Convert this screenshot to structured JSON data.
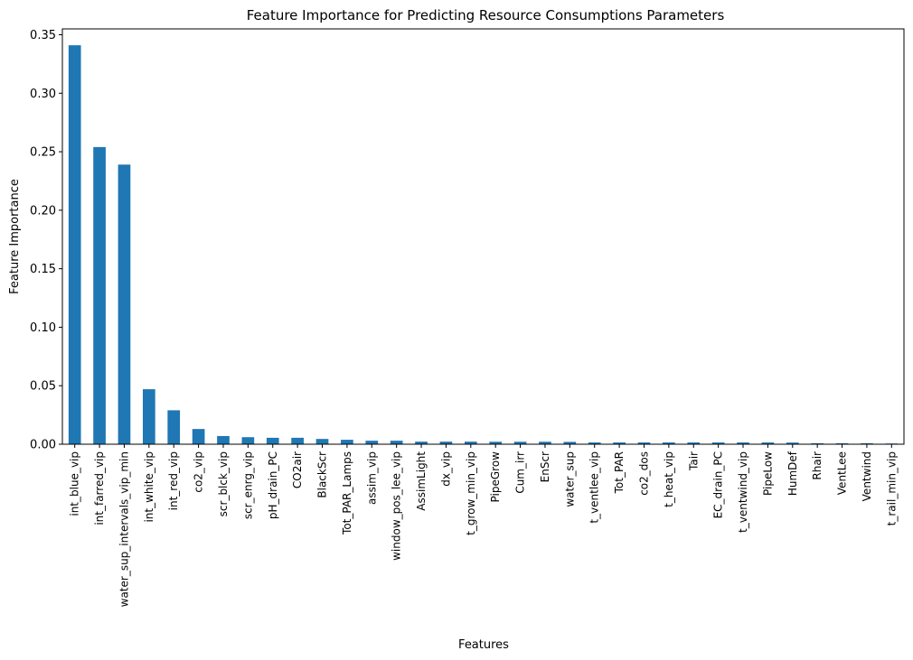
{
  "chart_data": {
    "type": "bar",
    "title": "Feature Importance for Predicting Resource Consumptions Parameters",
    "xlabel": "Features",
    "ylabel": "Feature Importance",
    "ylim": [
      0,
      0.355
    ],
    "yticks": [
      "0.00",
      "0.05",
      "0.10",
      "0.15",
      "0.20",
      "0.25",
      "0.30",
      "0.35"
    ],
    "bar_color": "#1f77b4",
    "grid": false,
    "legend": "none",
    "categories": [
      "int_blue_vip",
      "int_farred_vip",
      "water_sup_intervals_vip_min",
      "int_white_vip",
      "int_red_vip",
      "co2_vip",
      "scr_blck_vip",
      "scr_enrg_vip",
      "pH_drain_PC",
      "CO2air",
      "BlackScr",
      "Tot_PAR_Lamps",
      "assim_vip",
      "window_pos_lee_vip",
      "AssimLight",
      "dx_vip",
      "t_grow_min_vip",
      "PipeGrow",
      "Cum_irr",
      "EnScr",
      "water_sup",
      "t_ventlee_vip",
      "Tot_PAR",
      "co2_dos",
      "t_heat_vip",
      "Tair",
      "EC_drain_PC",
      "t_ventwind_vip",
      "PipeLow",
      "HumDef",
      "Rhair",
      "VentLee",
      "Ventwind",
      "t_rail_min_vip"
    ],
    "values": [
      0.341,
      0.254,
      0.239,
      0.047,
      0.029,
      0.013,
      0.007,
      0.006,
      0.0055,
      0.0055,
      0.0045,
      0.0038,
      0.003,
      0.003,
      0.0022,
      0.0022,
      0.0022,
      0.0021,
      0.0021,
      0.0021,
      0.002,
      0.0015,
      0.0015,
      0.0015,
      0.0015,
      0.0015,
      0.0015,
      0.0015,
      0.0015,
      0.0014,
      0.0008,
      0.0008,
      0.0008,
      0.0006
    ]
  }
}
